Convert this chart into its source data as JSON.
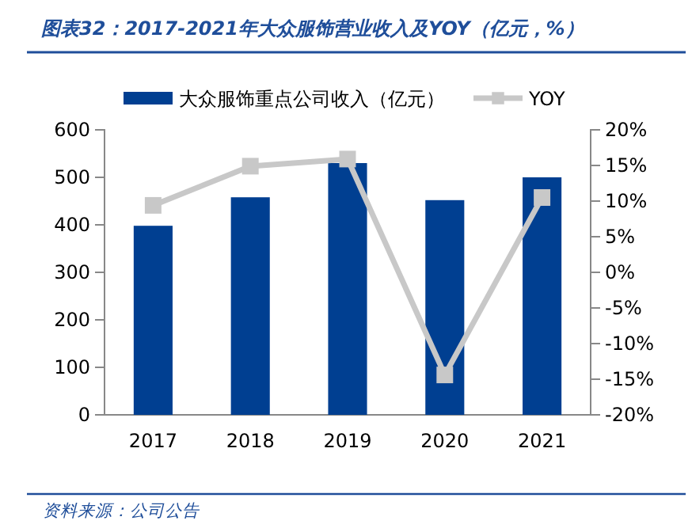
{
  "chart_data": {
    "type": "bar",
    "title": "图表32：2017-2021年大众服饰营业收入及YOY（亿元，%）",
    "annotations": [
      "资料来源：公司公告"
    ],
    "categories": [
      "2017",
      "2018",
      "2019",
      "2020",
      "2021"
    ],
    "series": [
      {
        "name": "大众服饰重点公司收入（亿元）",
        "color": "#003f91",
        "values": [
          398,
          458,
          530,
          452,
          500
        ]
      },
      {
        "name": "YOY",
        "type": "line",
        "axis": "y2",
        "color": "#c8c8c8",
        "marker": "square",
        "values": [
          9.4,
          14.9,
          15.9,
          -14.4,
          10.5
        ]
      }
    ],
    "ylim": [
      0,
      600
    ],
    "yticks": [
      0,
      100,
      200,
      300,
      400,
      500,
      600
    ],
    "y2lim": [
      -20,
      20
    ],
    "y2ticks": [
      {
        "value": -20,
        "label": "-20%"
      },
      {
        "value": -15,
        "label": "-15%"
      },
      {
        "value": -10,
        "label": "-10%"
      },
      {
        "value": -5,
        "label": "-5%"
      },
      {
        "value": 0,
        "label": "0%"
      },
      {
        "value": 5,
        "label": "5%"
      },
      {
        "value": 10,
        "label": "10%"
      },
      {
        "value": 15,
        "label": "15%"
      },
      {
        "value": 20,
        "label": "20%"
      }
    ],
    "legend": "top",
    "grid": false
  }
}
